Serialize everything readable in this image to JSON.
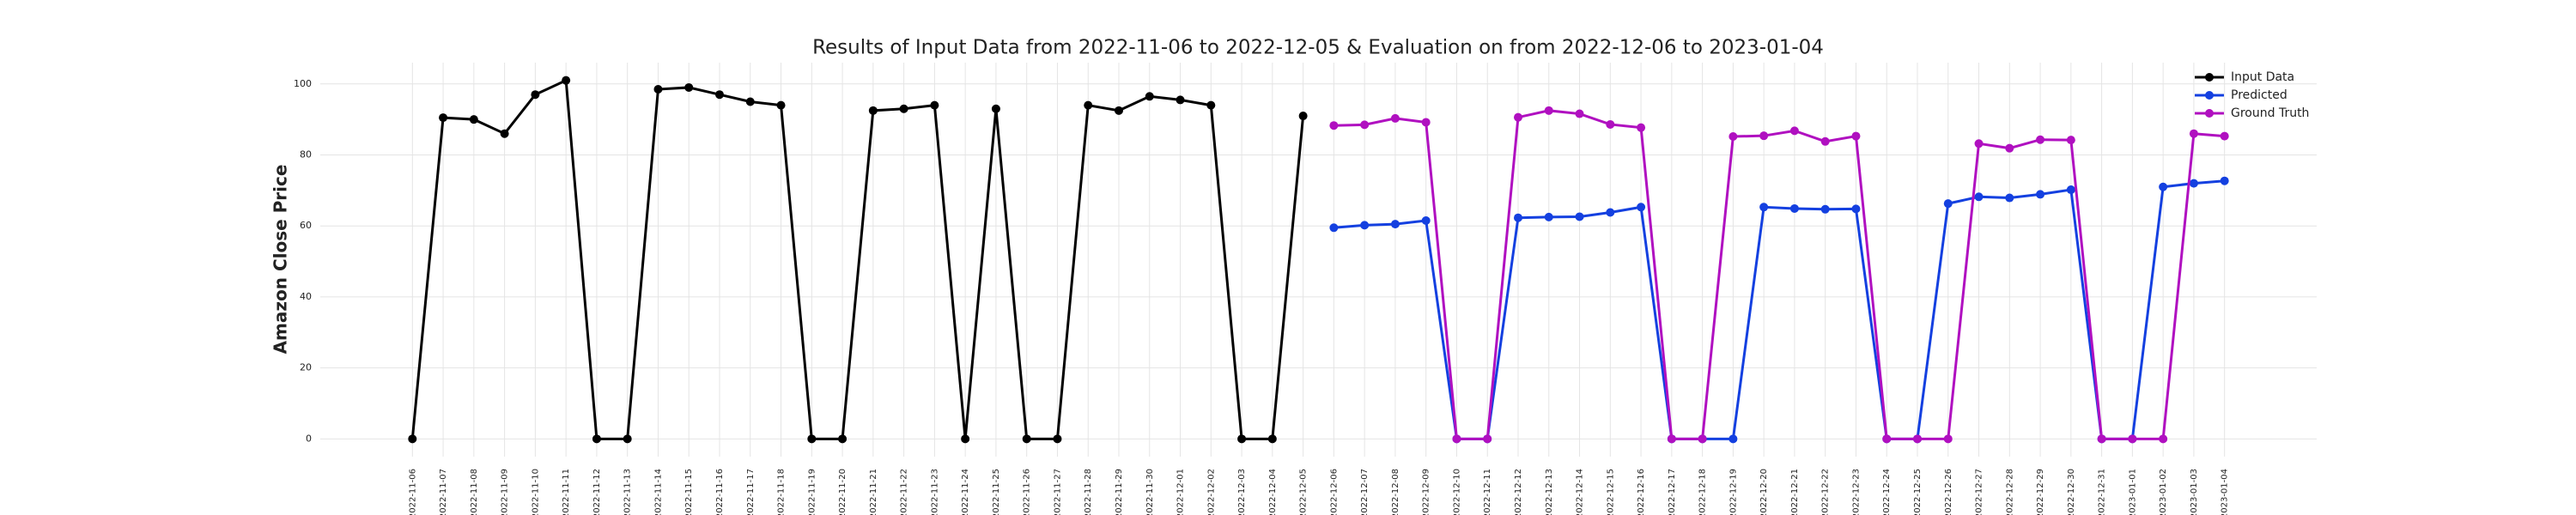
{
  "chart_data": {
    "type": "line",
    "title": "Results of Input Data from 2022-11-06 to 2022-12-05 & Evaluation on from 2022-12-06 to 2023-01-04",
    "ylabel": "Amazon Close Price",
    "categories": [
      "2022-11-06",
      "2022-11-07",
      "2022-11-08",
      "2022-11-09",
      "2022-11-10",
      "2022-11-11",
      "2022-11-12",
      "2022-11-13",
      "2022-11-14",
      "2022-11-15",
      "2022-11-16",
      "2022-11-17",
      "2022-11-18",
      "2022-11-19",
      "2022-11-20",
      "2022-11-21",
      "2022-11-22",
      "2022-11-23",
      "2022-11-24",
      "2022-11-25",
      "2022-11-26",
      "2022-11-27",
      "2022-11-28",
      "2022-11-29",
      "2022-11-30",
      "2022-12-01",
      "2022-12-02",
      "2022-12-03",
      "2022-12-04",
      "2022-12-05",
      "2022-12-06",
      "2022-12-07",
      "2022-12-08",
      "2022-12-09",
      "2022-12-10",
      "2022-12-11",
      "2022-12-12",
      "2022-12-13",
      "2022-12-14",
      "2022-12-15",
      "2022-12-16",
      "2022-12-17",
      "2022-12-18",
      "2022-12-19",
      "2022-12-20",
      "2022-12-21",
      "2022-12-22",
      "2022-12-23",
      "2022-12-24",
      "2022-12-25",
      "2022-12-26",
      "2022-12-27",
      "2022-12-28",
      "2022-12-29",
      "2022-12-30",
      "2022-12-31",
      "2023-01-01",
      "2023-01-02",
      "2023-01-03",
      "2023-01-04"
    ],
    "series": [
      {
        "name": "Input Data",
        "color": "#000000",
        "values": [
          0,
          90.5,
          90,
          86,
          97,
          101,
          0,
          0,
          98.5,
          99,
          97,
          95,
          94,
          0,
          0,
          92.5,
          93,
          94,
          0,
          93,
          0,
          0,
          94,
          92.5,
          96.5,
          95.5,
          94,
          0,
          0,
          91,
          null,
          null,
          null,
          null,
          null,
          null,
          null,
          null,
          null,
          null,
          null,
          null,
          null,
          null,
          null,
          null,
          null,
          null,
          null,
          null,
          null,
          null,
          null,
          null,
          null,
          null,
          null,
          null,
          null,
          null
        ]
      },
      {
        "name": "Predicted",
        "color": "#1440e0",
        "values": [
          null,
          null,
          null,
          null,
          null,
          null,
          null,
          null,
          null,
          null,
          null,
          null,
          null,
          null,
          null,
          null,
          null,
          null,
          null,
          null,
          null,
          null,
          null,
          null,
          null,
          null,
          null,
          null,
          null,
          null,
          59.5,
          60.2,
          60.5,
          61.5,
          0,
          0,
          62.3,
          62.5,
          62.6,
          63.8,
          65.3,
          0,
          0,
          0,
          65.3,
          64.9,
          64.7,
          64.8,
          0,
          0,
          66.3,
          68.2,
          67.9,
          68.9,
          70.2,
          0,
          0,
          71,
          72,
          72.7
        ]
      },
      {
        "name": "Ground Truth",
        "color": "#b010c0",
        "values": [
          null,
          null,
          null,
          null,
          null,
          null,
          null,
          null,
          null,
          null,
          null,
          null,
          null,
          null,
          null,
          null,
          null,
          null,
          null,
          null,
          null,
          null,
          null,
          null,
          null,
          null,
          null,
          null,
          null,
          null,
          88.3,
          88.5,
          90.3,
          89.2,
          0,
          0,
          90.6,
          92.5,
          91.6,
          88.6,
          87.7,
          0,
          0,
          85.2,
          85.4,
          86.8,
          83.8,
          85.3,
          0,
          0,
          0,
          83.2,
          81.9,
          84.3,
          84.2,
          0,
          0,
          0,
          86,
          85.3
        ]
      }
    ],
    "ylim": [
      -5,
      106
    ],
    "yticks": [
      0,
      20,
      40,
      60,
      80,
      100
    ],
    "grid": true,
    "legend": "upper right"
  }
}
